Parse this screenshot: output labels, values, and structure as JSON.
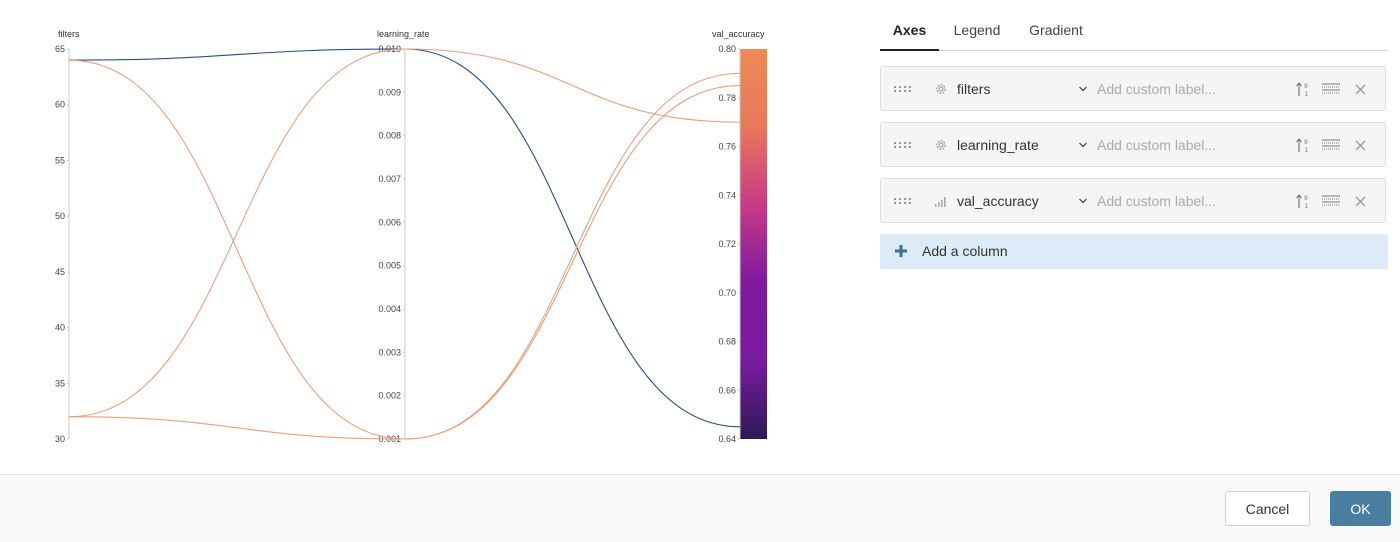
{
  "chart_data": {
    "type": "parallel_coordinates",
    "axes": [
      {
        "name": "filters",
        "min": 30,
        "max": 65,
        "ticks": [
          "30",
          "35",
          "40",
          "45",
          "50",
          "55",
          "60",
          "65"
        ]
      },
      {
        "name": "learning_rate",
        "min": 0.001,
        "max": 0.01,
        "ticks": [
          "0.001",
          "0.002",
          "0.003",
          "0.004",
          "0.005",
          "0.006",
          "0.007",
          "0.008",
          "0.009",
          "0.010"
        ]
      },
      {
        "name": "val_accuracy",
        "min": 0.64,
        "max": 0.8,
        "ticks": [
          "0.64",
          "0.66",
          "0.68",
          "0.70",
          "0.72",
          "0.74",
          "0.76",
          "0.78",
          "0.80"
        ]
      }
    ],
    "lines": [
      {
        "values": [
          64,
          0.01,
          0.645
        ],
        "color": "#2a4d80"
      },
      {
        "values": [
          64,
          0.001,
          0.79
        ],
        "color": "#e8a080"
      },
      {
        "values": [
          32,
          0.01,
          0.77
        ],
        "color": "#e8a080"
      },
      {
        "values": [
          32,
          0.001,
          0.785
        ],
        "color": "#e8a080"
      }
    ],
    "gradient": [
      "#2d1a55",
      "#7a1aa0",
      "#7e1a9e",
      "#c83a86",
      "#e8785a",
      "#ee8a56"
    ]
  },
  "panel": {
    "tabs": [
      {
        "label": "Axes",
        "active": true
      },
      {
        "label": "Legend",
        "active": false
      },
      {
        "label": "Gradient",
        "active": false
      }
    ],
    "rows": [
      {
        "name": "filters",
        "icon": "gear-icon",
        "value": "",
        "placeholder": "Add custom label..."
      },
      {
        "name": "learning_rate",
        "icon": "gear-icon",
        "value": "",
        "placeholder": "Add custom label..."
      },
      {
        "name": "val_accuracy",
        "icon": "bar-chart-icon",
        "value": "",
        "placeholder": "Add custom label..."
      }
    ],
    "add_column_label": "Add a column"
  },
  "footer": {
    "cancel_label": "Cancel",
    "ok_label": "OK"
  }
}
